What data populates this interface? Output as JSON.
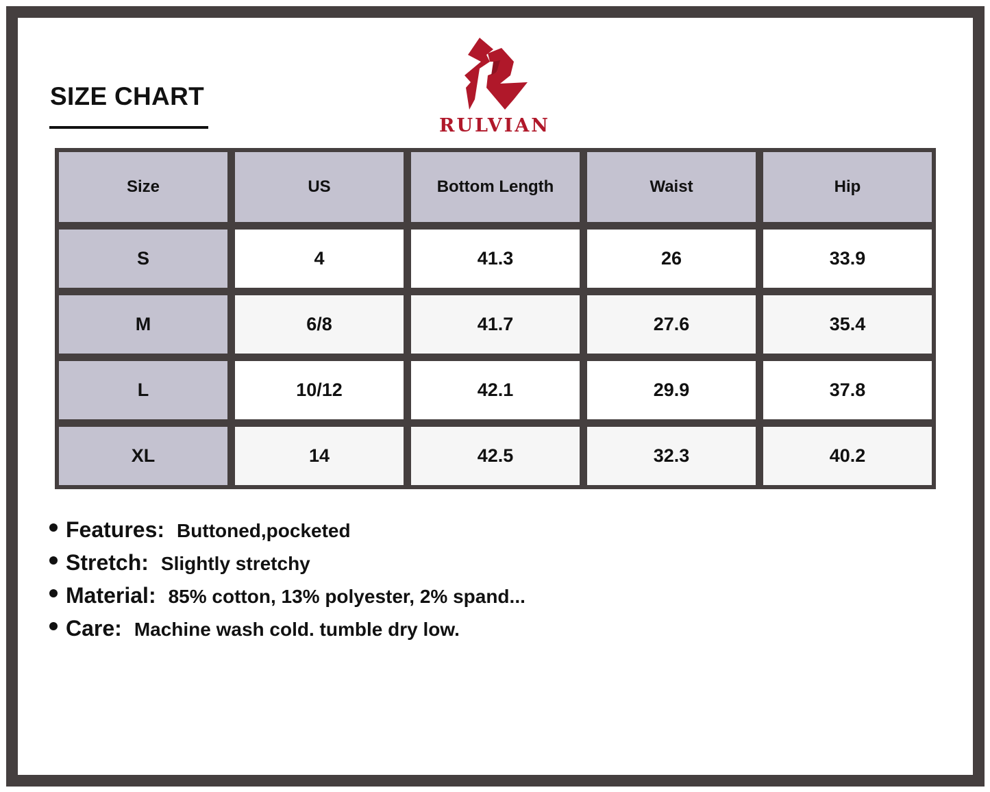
{
  "title": "SIZE CHART",
  "brand": {
    "name": "RULVIAN",
    "color": "#b0182a"
  },
  "colors": {
    "frame": "#453f3f",
    "header_bg": "#c4c2d0"
  },
  "table": {
    "headers": [
      "Size",
      "US",
      "Bottom Length",
      "Waist",
      "Hip"
    ],
    "rows": [
      [
        "S",
        "4",
        "41.3",
        "26",
        "33.9"
      ],
      [
        "M",
        "6/8",
        "41.7",
        "27.6",
        "35.4"
      ],
      [
        "L",
        "10/12",
        "42.1",
        "29.9",
        "37.8"
      ],
      [
        "XL",
        "14",
        "42.5",
        "32.3",
        "40.2"
      ]
    ]
  },
  "features": [
    {
      "label": "Features:",
      "value": "Buttoned,pocketed"
    },
    {
      "label": "Stretch:",
      "value": "Slightly stretchy"
    },
    {
      "label": "Material:",
      "value": "85% cotton, 13% polyester, 2% spand..."
    },
    {
      "label": "Care:",
      "value": "Machine wash cold. tumble dry low."
    }
  ]
}
